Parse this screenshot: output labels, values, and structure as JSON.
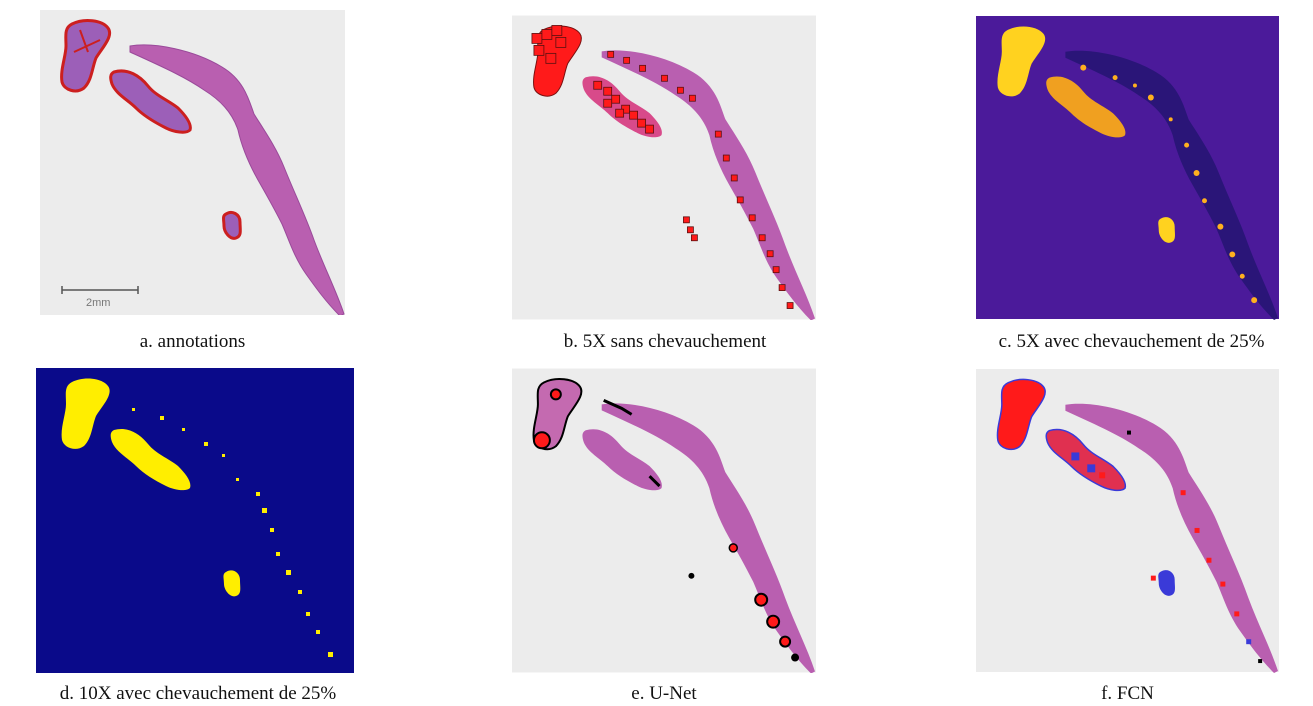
{
  "figure": {
    "panels": [
      {
        "id": "a",
        "caption": "a. annotations",
        "scale_bar_label": "2mm"
      },
      {
        "id": "b",
        "caption": "b. 5X sans chevauchement"
      },
      {
        "id": "c",
        "caption": "c. 5X avec chevauchement de 25%"
      },
      {
        "id": "d",
        "caption": "d. 10X avec chevauchement de 25%"
      },
      {
        "id": "e",
        "caption": "e. U-Net"
      },
      {
        "id": "f",
        "caption": "f. FCN"
      }
    ]
  },
  "colors": {
    "slide_background": "#ececec",
    "tissue": "#b95fb0",
    "tissue_dark": "#8e3f8e",
    "annotation_outline": "#cc1f1f",
    "prediction_fill": "#ff1a1a",
    "heatmap_background": "#4b1a9a",
    "heatmap_high": "#ffd21f",
    "binary_background": "#0a0a8a",
    "binary_positive": "#ffee00",
    "unet_edge": "#000000",
    "fcn_blue": "#3a3ad8"
  }
}
